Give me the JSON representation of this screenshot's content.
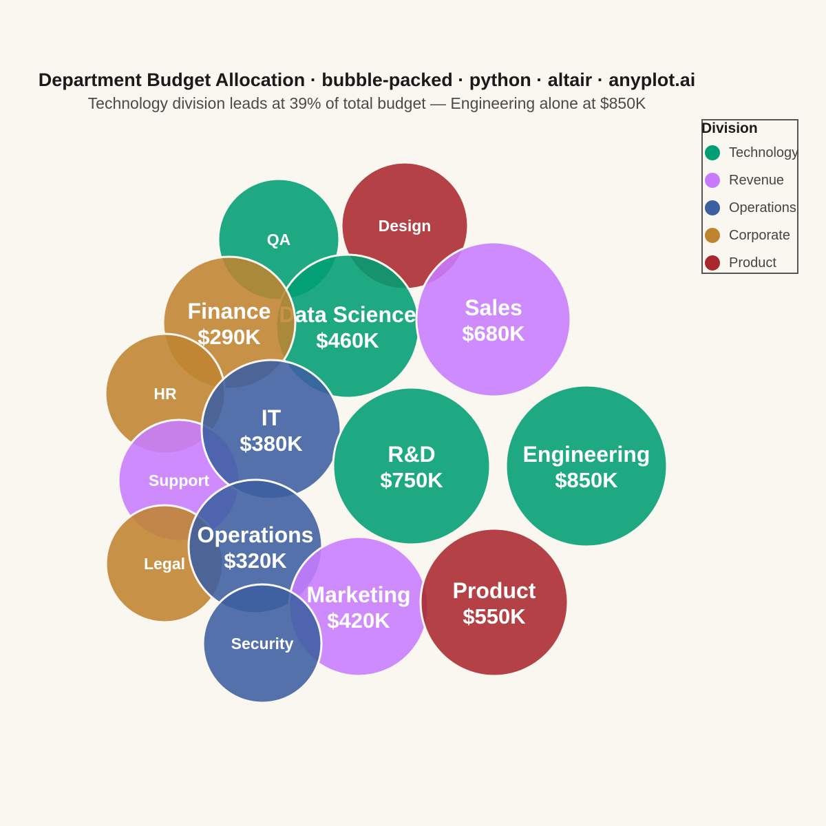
{
  "title": "Department Budget Allocation · bubble-packed · python · altair · anyplot.ai",
  "subtitle": "Technology division leads at 39% of total budget — Engineering alone at $850K",
  "legend": {
    "title": "Division",
    "items": [
      {
        "label": "Technology",
        "color": "#009E73"
      },
      {
        "label": "Revenue",
        "color": "#C77CFF"
      },
      {
        "label": "Operations",
        "color": "#3C5FA0"
      },
      {
        "label": "Corporate",
        "color": "#BF8430"
      },
      {
        "label": "Product",
        "color": "#A8282C"
      }
    ]
  },
  "chart_data": {
    "type": "bubble-packed",
    "unit": "$K",
    "series": [
      {
        "name": "QA",
        "division": "Technology",
        "value": null,
        "label": "QA"
      },
      {
        "name": "Design",
        "division": "Product",
        "value": null,
        "label": "Design"
      },
      {
        "name": "Data Science",
        "division": "Technology",
        "value": 460,
        "label": "$460K"
      },
      {
        "name": "Finance",
        "division": "Corporate",
        "value": 290,
        "label": "$290K"
      },
      {
        "name": "Sales",
        "division": "Revenue",
        "value": 680,
        "label": "$680K"
      },
      {
        "name": "HR",
        "division": "Corporate",
        "value": null,
        "label": "HR"
      },
      {
        "name": "Support",
        "division": "Revenue",
        "value": null,
        "label": "Support"
      },
      {
        "name": "IT",
        "division": "Operations",
        "value": 380,
        "label": "$380K"
      },
      {
        "name": "R&D",
        "division": "Technology",
        "value": 750,
        "label": "$750K"
      },
      {
        "name": "Engineering",
        "division": "Technology",
        "value": 850,
        "label": "$850K"
      },
      {
        "name": "Legal",
        "division": "Corporate",
        "value": null,
        "label": "Legal"
      },
      {
        "name": "Operations",
        "division": "Operations",
        "value": 320,
        "label": "$320K"
      },
      {
        "name": "Marketing",
        "division": "Revenue",
        "value": 420,
        "label": "$420K"
      },
      {
        "name": "Product",
        "division": "Product",
        "value": 550,
        "label": "$550K"
      },
      {
        "name": "Security",
        "division": "Operations",
        "value": null,
        "label": "Security"
      }
    ]
  }
}
